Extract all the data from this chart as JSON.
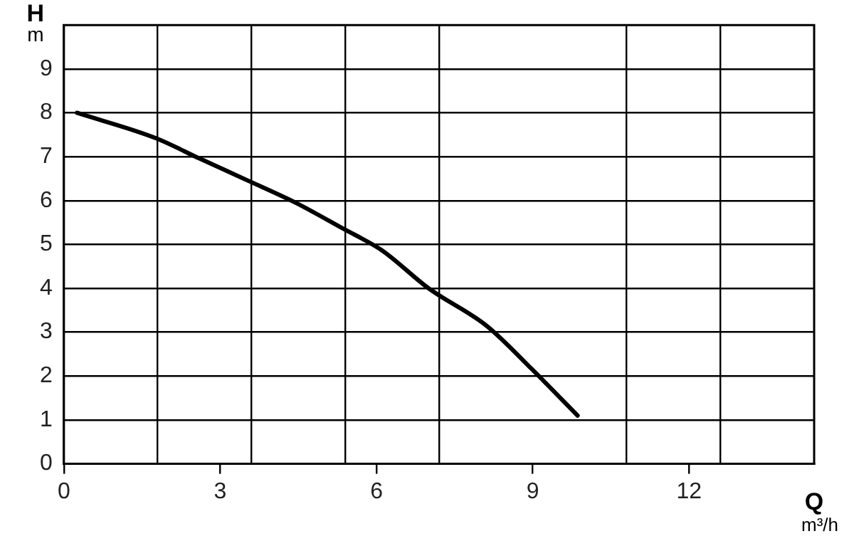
{
  "chart_data": {
    "type": "line",
    "xlabel": "Q",
    "ylabel": "H",
    "annotations": [
      "m",
      "m³/h"
    ],
    "x": [
      0.25,
      1.77,
      2.6,
      3.56,
      4.45,
      5.36,
      6.1,
      7.0,
      8.12,
      8.98,
      9.86
    ],
    "series": [
      {
        "color": "#000000",
        "values": [
          8.0,
          7.42,
          6.96,
          6.44,
          5.95,
          5.36,
          4.87,
          4.0,
          3.14,
          2.16,
          1.1
        ]
      }
    ],
    "xlim": [
      0,
      14.4
    ],
    "xticks": [
      0,
      {
        "value": 1.8,
        "label": null
      },
      3,
      {
        "value": 3.6,
        "label": null
      },
      {
        "value": 5.4,
        "label": null
      },
      6,
      {
        "value": 7.2,
        "label": null
      },
      9,
      {
        "value": 10.8,
        "label": null
      },
      12,
      {
        "value": 12.6,
        "label": null
      }
    ],
    "ylim": [
      0,
      10
    ],
    "yticks": [
      0,
      1,
      2,
      3,
      4,
      5,
      6,
      7,
      8,
      9
    ],
    "grid": true,
    "legend": false,
    "marker": "none",
    "line_style": "solid"
  }
}
